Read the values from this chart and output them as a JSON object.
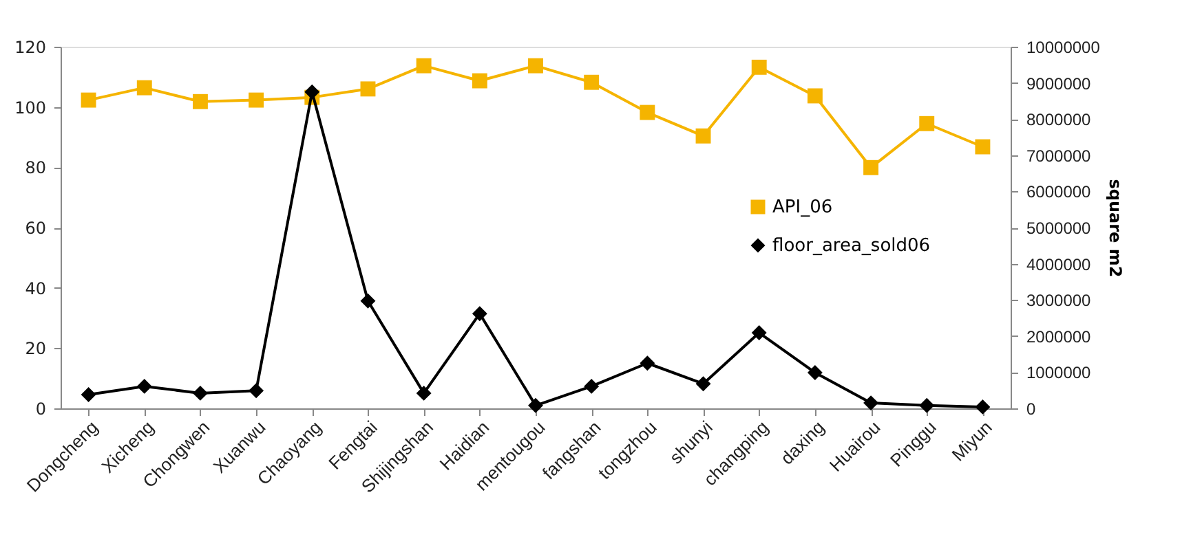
{
  "chart_data": {
    "type": "line",
    "y2label": "square m2",
    "categories": [
      "Dongcheng",
      "Xicheng",
      "Chongwen",
      "Xuanwu",
      "Chaoyang",
      "Fengtai",
      "Shijingshan",
      "Haidian",
      "mentougou",
      "fangshan",
      "tongzhou",
      "shunyi",
      "changping",
      "daxing",
      "Huairou",
      "Pinggu",
      "Miyun"
    ],
    "series": [
      {
        "name": "API_06",
        "color": "#f5b400",
        "marker": "square",
        "values": [
          102.3,
          106.4,
          101.8,
          102.3,
          103.2,
          106,
          113.7,
          108.7,
          113.7,
          108.2,
          98.2,
          90.4,
          113.2,
          103.7,
          79.9,
          94.5,
          86.8
        ]
      },
      {
        "name": "floor_area_sold06",
        "color": "#000000",
        "marker": "diamond",
        "axis": "y2",
        "values": [
          380000,
          610000,
          420000,
          490000,
          8750000,
          2970000,
          420000,
          2620000,
          80000,
          610000,
          1250000,
          680000,
          2090000,
          990000,
          150000,
          80000,
          40000
        ]
      }
    ],
    "ylim": [
      0,
      120
    ],
    "yticks": [
      0,
      20,
      40,
      60,
      80,
      100,
      120
    ],
    "y2lim": [
      0,
      10000000
    ],
    "y2ticks": [
      0,
      1000000,
      2000000,
      3000000,
      4000000,
      5000000,
      6000000,
      7000000,
      8000000,
      9000000,
      10000000
    ],
    "legend": "right",
    "grid": false,
    "line_style": "solid"
  }
}
